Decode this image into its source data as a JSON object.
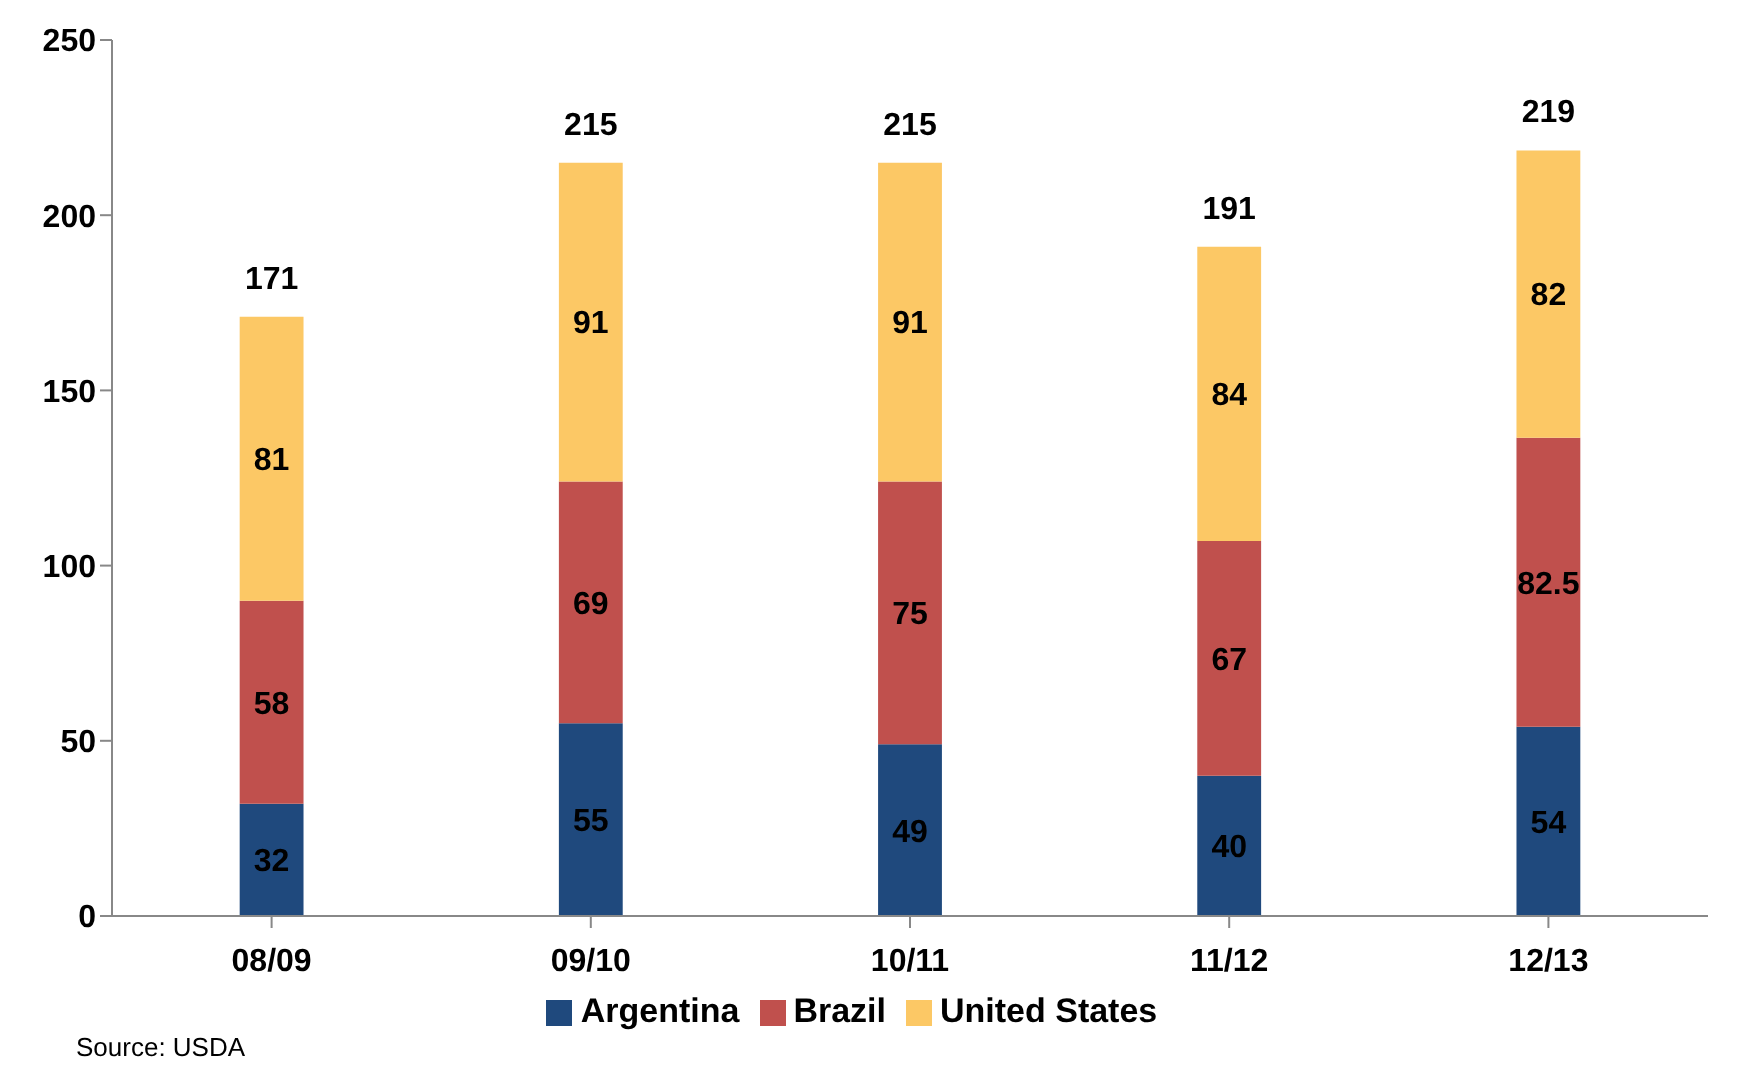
{
  "chart_data": {
    "type": "bar",
    "stacked": true,
    "categories": [
      "08/09",
      "09/10",
      "10/11",
      "11/12",
      "12/13"
    ],
    "series": [
      {
        "name": "Argentina",
        "color": "#1f497d",
        "values": [
          32,
          55,
          49,
          40,
          54
        ]
      },
      {
        "name": "Brazil",
        "color": "#c0504d",
        "values": [
          58,
          69,
          75,
          67,
          82.5
        ]
      },
      {
        "name": "United States",
        "color": "#fcc865",
        "values": [
          81,
          91,
          91,
          84,
          82
        ]
      }
    ],
    "totals": [
      "171",
      "215",
      "215",
      "191",
      "219"
    ],
    "data_labels": true,
    "ylim": [
      0,
      250
    ],
    "yticks": [
      0,
      50,
      100,
      150,
      200,
      250
    ],
    "legend": "bottom",
    "annotations": [
      "Source: USDA"
    ]
  }
}
